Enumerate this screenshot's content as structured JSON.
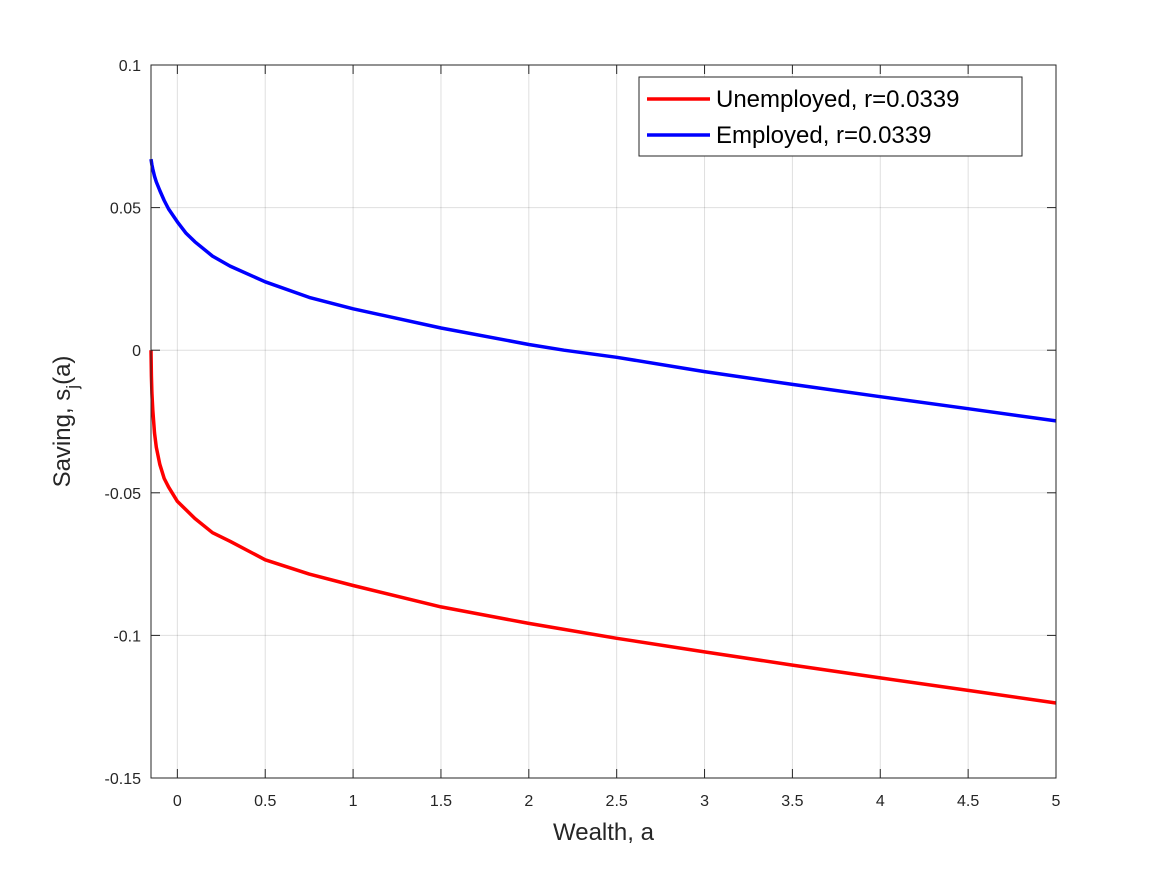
{
  "chart_data": {
    "type": "line",
    "xlabel": "Wealth, a",
    "ylabel_main": "Saving, s",
    "ylabel_sub": "j",
    "ylabel_end": "(a)",
    "xlim": [
      -0.15,
      5
    ],
    "ylim": [
      -0.15,
      0.1
    ],
    "xticks": [
      0,
      0.5,
      1,
      1.5,
      2,
      2.5,
      3,
      3.5,
      4,
      4.5,
      5
    ],
    "xtick_labels": [
      "0",
      "0.5",
      "1",
      "1.5",
      "2",
      "2.5",
      "3",
      "3.5",
      "4",
      "4.5",
      "5"
    ],
    "yticks": [
      -0.15,
      -0.1,
      -0.05,
      0,
      0.05,
      0.1
    ],
    "ytick_labels": [
      "-0.15",
      "-0.1",
      "-0.05",
      "0",
      "0.05",
      "0.1"
    ],
    "grid": true,
    "legend_position": "top-right",
    "series": [
      {
        "name": "Unemployed, r=0.0339",
        "color": "#ff0000",
        "x": [
          -0.15,
          -0.148,
          -0.145,
          -0.14,
          -0.13,
          -0.12,
          -0.1,
          -0.075,
          -0.05,
          0,
          0.05,
          0.1,
          0.2,
          0.3,
          0.5,
          0.75,
          1,
          1.5,
          2,
          2.5,
          3,
          3.5,
          4,
          4.5,
          5
        ],
        "y": [
          0,
          -0.009,
          -0.015,
          -0.021,
          -0.029,
          -0.034,
          -0.04,
          -0.045,
          -0.048,
          -0.053,
          -0.056,
          -0.059,
          -0.064,
          -0.067,
          -0.0735,
          -0.0785,
          -0.0825,
          -0.09,
          -0.0958,
          -0.101,
          -0.1058,
          -0.1104,
          -0.1149,
          -0.1193,
          -0.1237
        ]
      },
      {
        "name": "Employed, r=0.0339",
        "color": "#0000ff",
        "x": [
          -0.15,
          -0.145,
          -0.14,
          -0.13,
          -0.12,
          -0.1,
          -0.075,
          -0.05,
          0,
          0.05,
          0.1,
          0.2,
          0.3,
          0.5,
          0.75,
          1,
          1.5,
          2,
          2.2,
          2.5,
          3,
          3.5,
          4,
          4.5,
          5
        ],
        "y": [
          0.067,
          0.065,
          0.0635,
          0.061,
          0.059,
          0.056,
          0.0525,
          0.0495,
          0.045,
          0.041,
          0.038,
          0.033,
          0.0295,
          0.024,
          0.0185,
          0.0145,
          0.0078,
          0.002,
          0.0,
          -0.0025,
          -0.0075,
          -0.012,
          -0.0163,
          -0.0205,
          -0.0248
        ]
      }
    ]
  }
}
